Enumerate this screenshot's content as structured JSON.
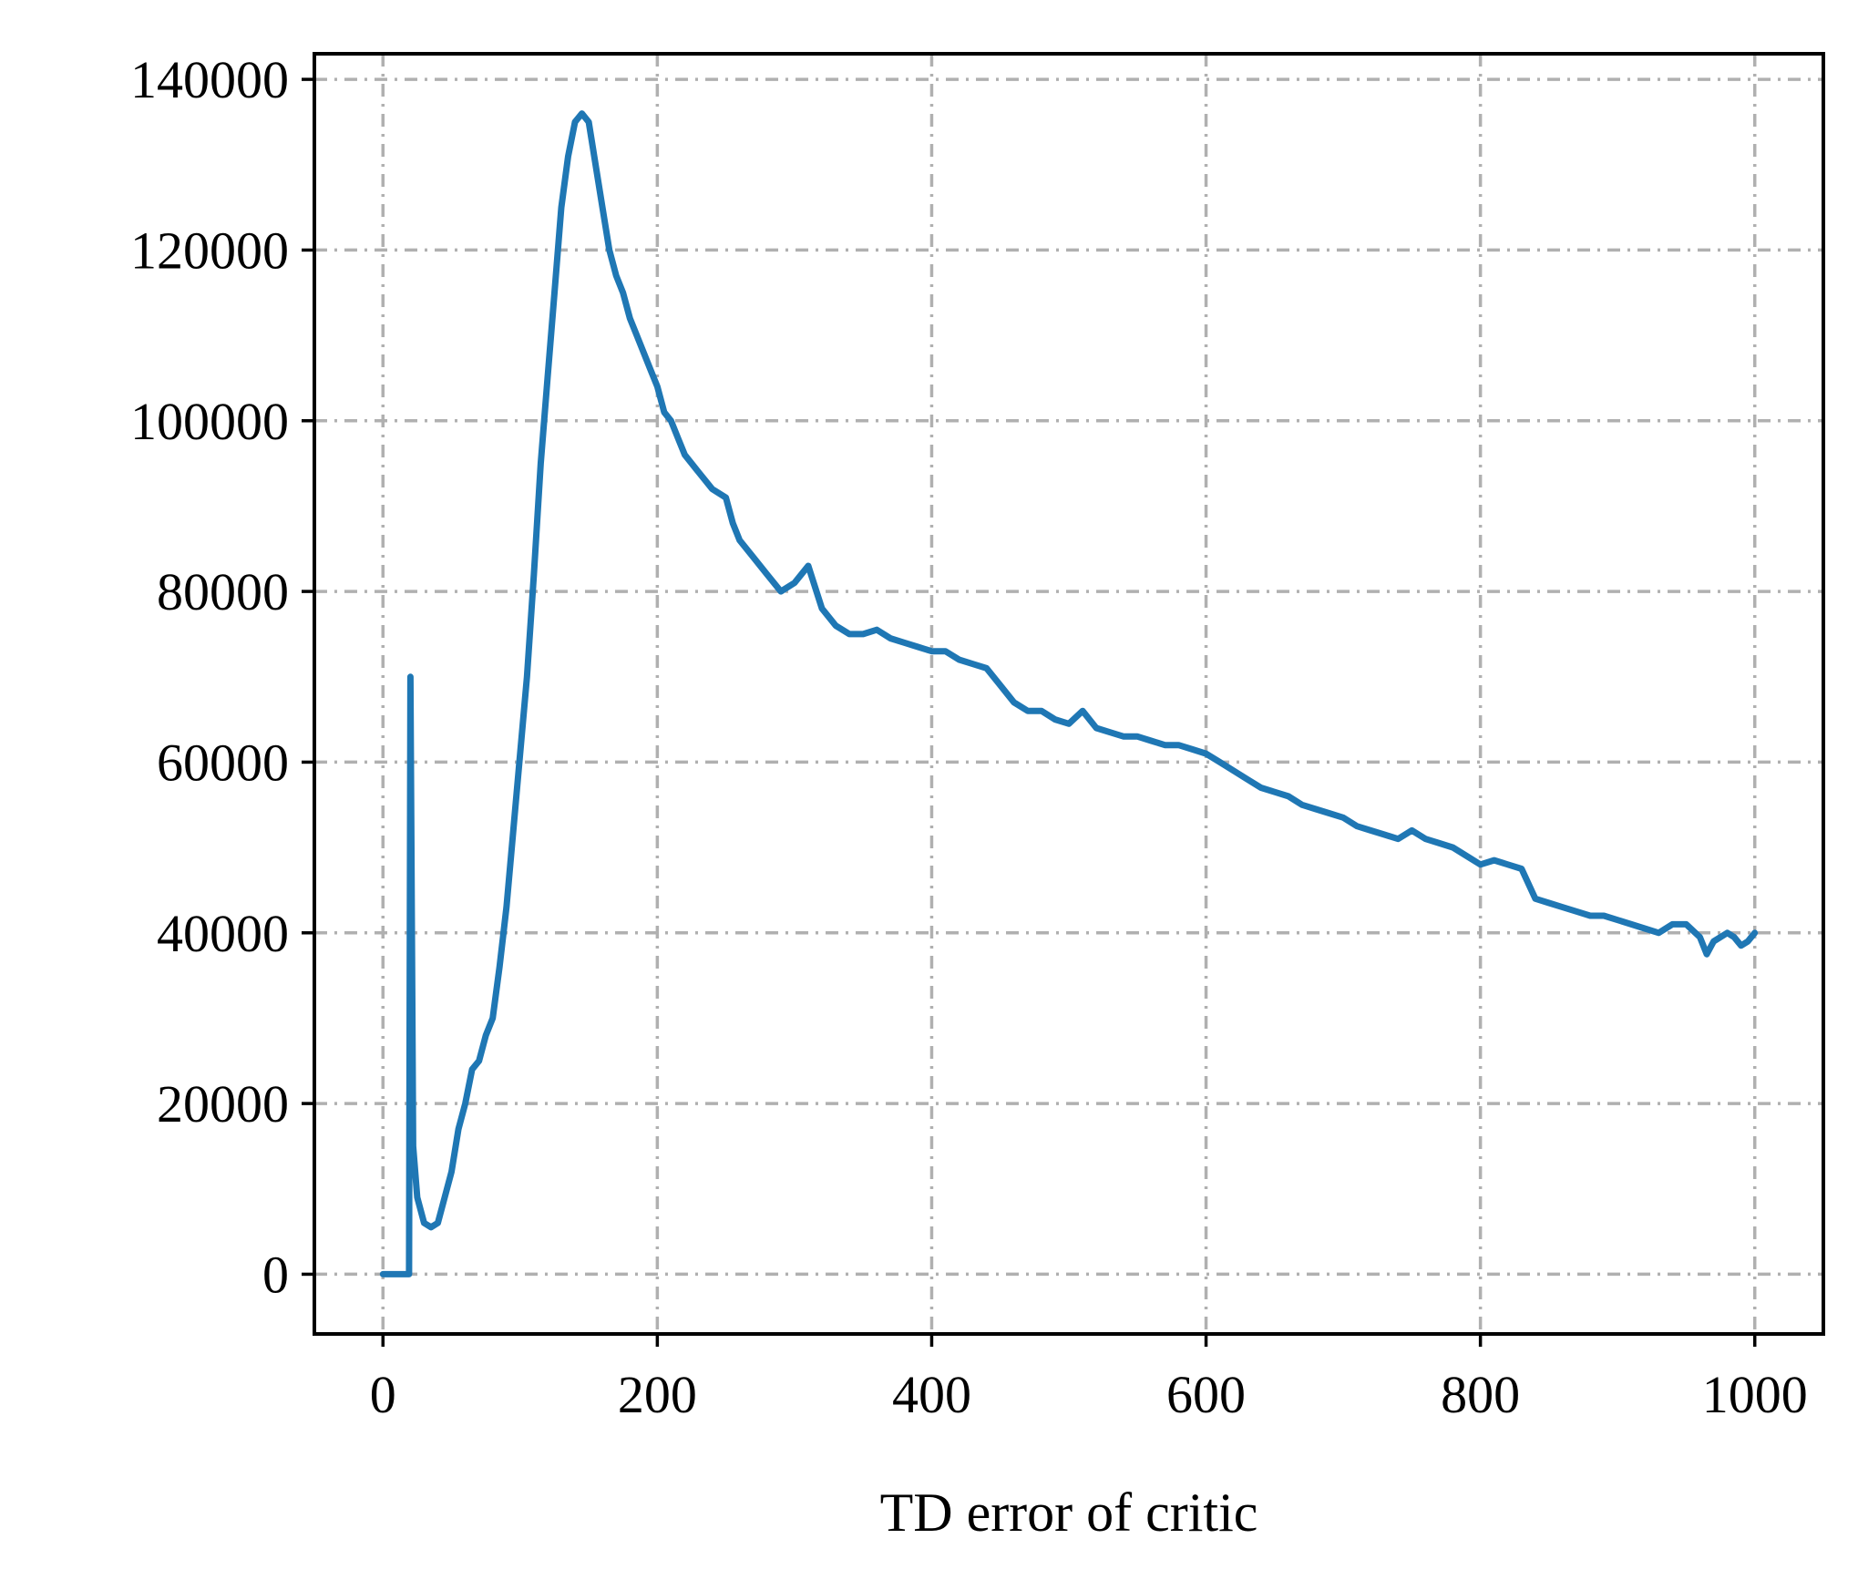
{
  "chart_data": {
    "type": "line",
    "title": "",
    "xlabel": "TD error of critic",
    "ylabel": "",
    "xlim": [
      -50,
      1050
    ],
    "ylim": [
      -7000,
      143000
    ],
    "x_ticks": [
      0,
      200,
      400,
      600,
      800,
      1000
    ],
    "y_ticks": [
      0,
      20000,
      40000,
      60000,
      80000,
      100000,
      120000,
      140000
    ],
    "x_tick_labels": [
      "0",
      "200",
      "400",
      "600",
      "800",
      "1000"
    ],
    "y_tick_labels": [
      "0",
      "20000",
      "40000",
      "60000",
      "80000",
      "100000",
      "120000",
      "140000"
    ],
    "grid": true,
    "grid_style": "dashdot",
    "grid_color": "#b0b0b0",
    "line_color": "#1f77b4",
    "legend": "none",
    "series": [
      {
        "x": [
          0,
          19,
          20,
          22,
          25,
          30,
          35,
          40,
          45,
          50,
          55,
          60,
          65,
          70,
          75,
          80,
          85,
          90,
          95,
          100,
          105,
          110,
          115,
          120,
          125,
          130,
          135,
          140,
          145,
          150,
          155,
          160,
          165,
          170,
          175,
          180,
          185,
          190,
          195,
          200,
          205,
          210,
          215,
          220,
          230,
          240,
          250,
          255,
          260,
          270,
          280,
          290,
          300,
          310,
          320,
          330,
          340,
          350,
          360,
          370,
          380,
          390,
          400,
          410,
          420,
          430,
          440,
          450,
          460,
          470,
          480,
          490,
          500,
          510,
          520,
          530,
          540,
          550,
          560,
          570,
          580,
          590,
          600,
          610,
          620,
          630,
          640,
          650,
          660,
          670,
          680,
          690,
          700,
          710,
          720,
          730,
          740,
          750,
          760,
          770,
          780,
          790,
          800,
          810,
          820,
          830,
          840,
          850,
          860,
          870,
          880,
          890,
          900,
          910,
          920,
          930,
          940,
          950,
          960,
          965,
          970,
          980,
          985,
          990,
          995,
          1000
        ],
        "y": [
          0,
          0,
          70000,
          15000,
          9000,
          6000,
          5500,
          6000,
          9000,
          12000,
          17000,
          20000,
          24000,
          25000,
          28000,
          30000,
          36000,
          43000,
          52000,
          61000,
          70000,
          82000,
          95000,
          105000,
          115000,
          125000,
          131000,
          135000,
          136000,
          135000,
          130000,
          125000,
          120000,
          117000,
          115000,
          112000,
          110000,
          108000,
          106000,
          104000,
          101000,
          100000,
          98000,
          96000,
          94000,
          92000,
          91000,
          88000,
          86000,
          84000,
          82000,
          80000,
          81000,
          83000,
          78000,
          76000,
          75000,
          75000,
          75500,
          74500,
          74000,
          73500,
          73000,
          73000,
          72000,
          71500,
          71000,
          69000,
          67000,
          66000,
          66000,
          65000,
          64500,
          66000,
          64000,
          63500,
          63000,
          63000,
          62500,
          62000,
          62000,
          61500,
          61000,
          60000,
          59000,
          58000,
          57000,
          56500,
          56000,
          55000,
          54500,
          54000,
          53500,
          52500,
          52000,
          51500,
          51000,
          52000,
          51000,
          50500,
          50000,
          49000,
          48000,
          48500,
          48000,
          47500,
          44000,
          43500,
          43000,
          42500,
          42000,
          42000,
          41500,
          41000,
          40500,
          40000,
          41000,
          41000,
          39500,
          37500,
          39000,
          40000,
          39500,
          38500,
          39000,
          40000
        ]
      }
    ]
  }
}
